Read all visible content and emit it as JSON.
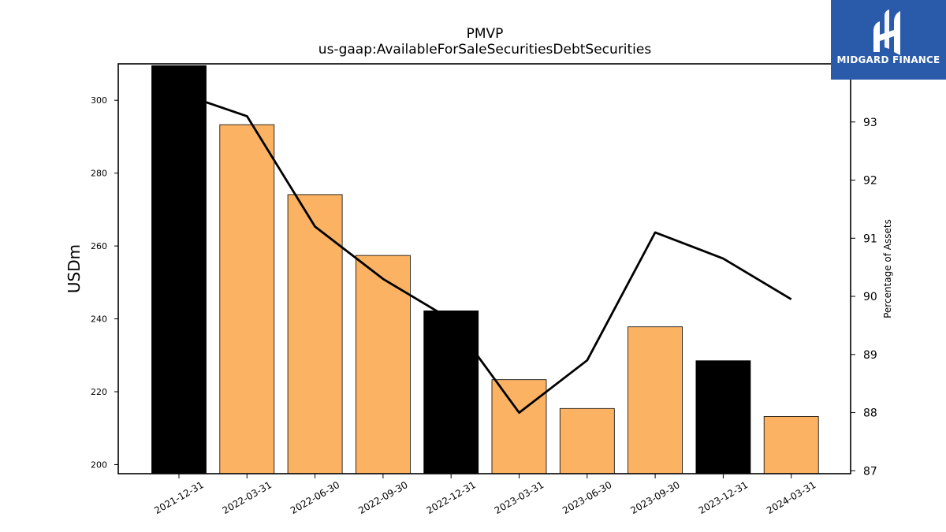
{
  "chart_data": {
    "type": "bar",
    "title": "PMVP",
    "subtitle": "us-gaap:AvailableForSaleSecuritiesDebtSecurities",
    "ylabel": "USDm",
    "y2label": "Percentage of Assets",
    "categories": [
      "2021-12-31",
      "2022-03-31",
      "2022-06-30",
      "2022-09-30",
      "2022-12-31",
      "2023-03-31",
      "2023-06-30",
      "2023-09-30",
      "2023-12-31",
      "2024-03-31"
    ],
    "series": [
      {
        "type": "bar",
        "axis": "left",
        "values": [
          309.5,
          293.3,
          274.1,
          257.4,
          242.2,
          223.3,
          215.4,
          237.8,
          228.5,
          213.2
        ],
        "colors": [
          "#000000",
          "#fbb363",
          "#fbb363",
          "#fbb363",
          "#000000",
          "#fbb363",
          "#fbb363",
          "#fbb363",
          "#000000",
          "#fbb363"
        ]
      },
      {
        "type": "line",
        "axis": "right",
        "color": "#000000",
        "values": [
          93.5,
          93.1,
          91.2,
          90.3,
          89.6,
          88.0,
          88.9,
          91.1,
          90.65,
          89.95
        ]
      }
    ],
    "ylim": [
      197.5,
      310
    ],
    "y2lim": [
      86.95,
      94.0
    ],
    "yticks": [
      200,
      220,
      240,
      260,
      280,
      300
    ],
    "y2ticks": [
      87,
      88,
      89,
      90,
      91,
      92,
      93
    ],
    "grid": false
  },
  "logo": {
    "text": "MIDGARD FINANCE",
    "color": "#2a5bab"
  }
}
